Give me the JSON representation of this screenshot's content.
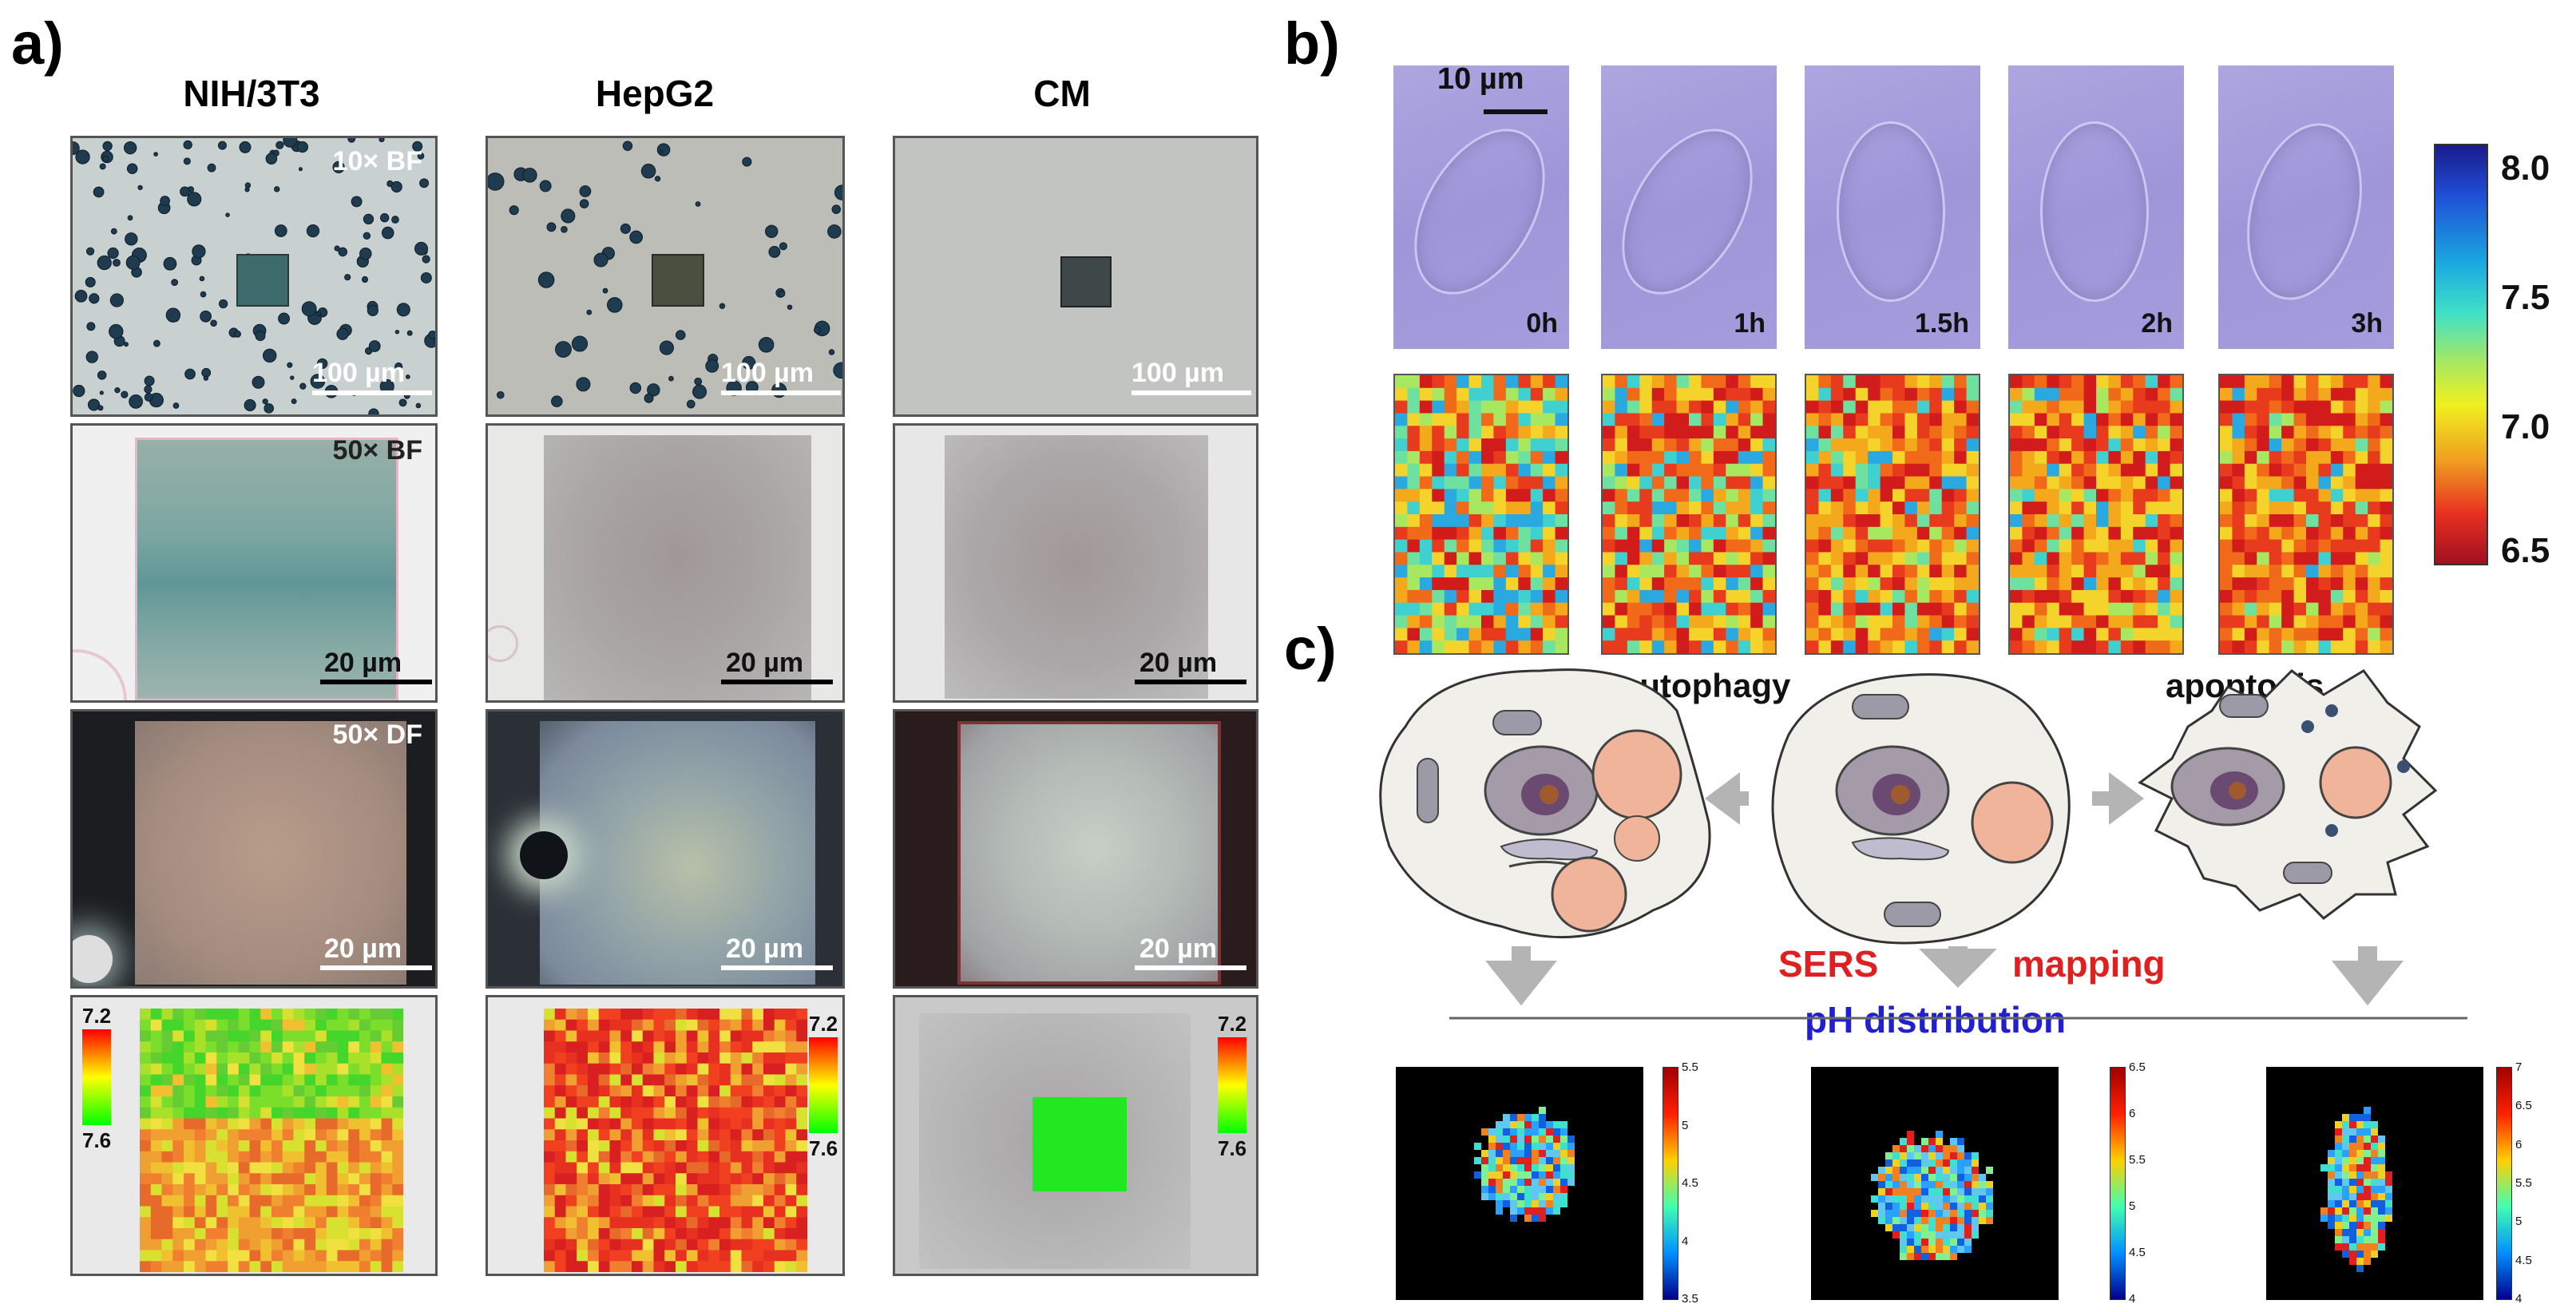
{
  "panel_a": {
    "letter": "a)",
    "columns": [
      "NIH/3T3",
      "HepG2",
      "CM"
    ],
    "row_labels": [
      "10× BF",
      "50× BF",
      "50× DF"
    ],
    "scale_100": "100 µm",
    "scale_20": "20 µm",
    "colorbar_top": "7.2",
    "colorbar_bottom": "7.6"
  },
  "panel_b": {
    "letter": "b)",
    "scale": "10 µm",
    "times": [
      "0h",
      "1h",
      "1.5h",
      "2h",
      "3h"
    ],
    "colorbar_ticks": [
      "8.0",
      "7.5",
      "7.0",
      "6.5"
    ]
  },
  "panel_c": {
    "letter": "c)",
    "autophagy": "autophagy",
    "apoptosis": "apoptosis",
    "sers": "SERS",
    "mapping": "mapping",
    "ph_distribution": "pH distribution",
    "cb1": [
      "5.5",
      "5",
      "4.5",
      "4",
      "3.5"
    ],
    "cb2": [
      "6.5",
      "6",
      "5.5",
      "5",
      "4.5",
      "4"
    ],
    "cb3": [
      "7",
      "6.5",
      "6",
      "5.5",
      "5",
      "4.5",
      "4"
    ]
  },
  "colors": {
    "sers_red": "#e02020",
    "ph_blue": "#2020d0",
    "arrow_gray": "#b4b4b4",
    "cell_fill": "#f1efea",
    "lysosome_fill": "#f0b49a"
  }
}
